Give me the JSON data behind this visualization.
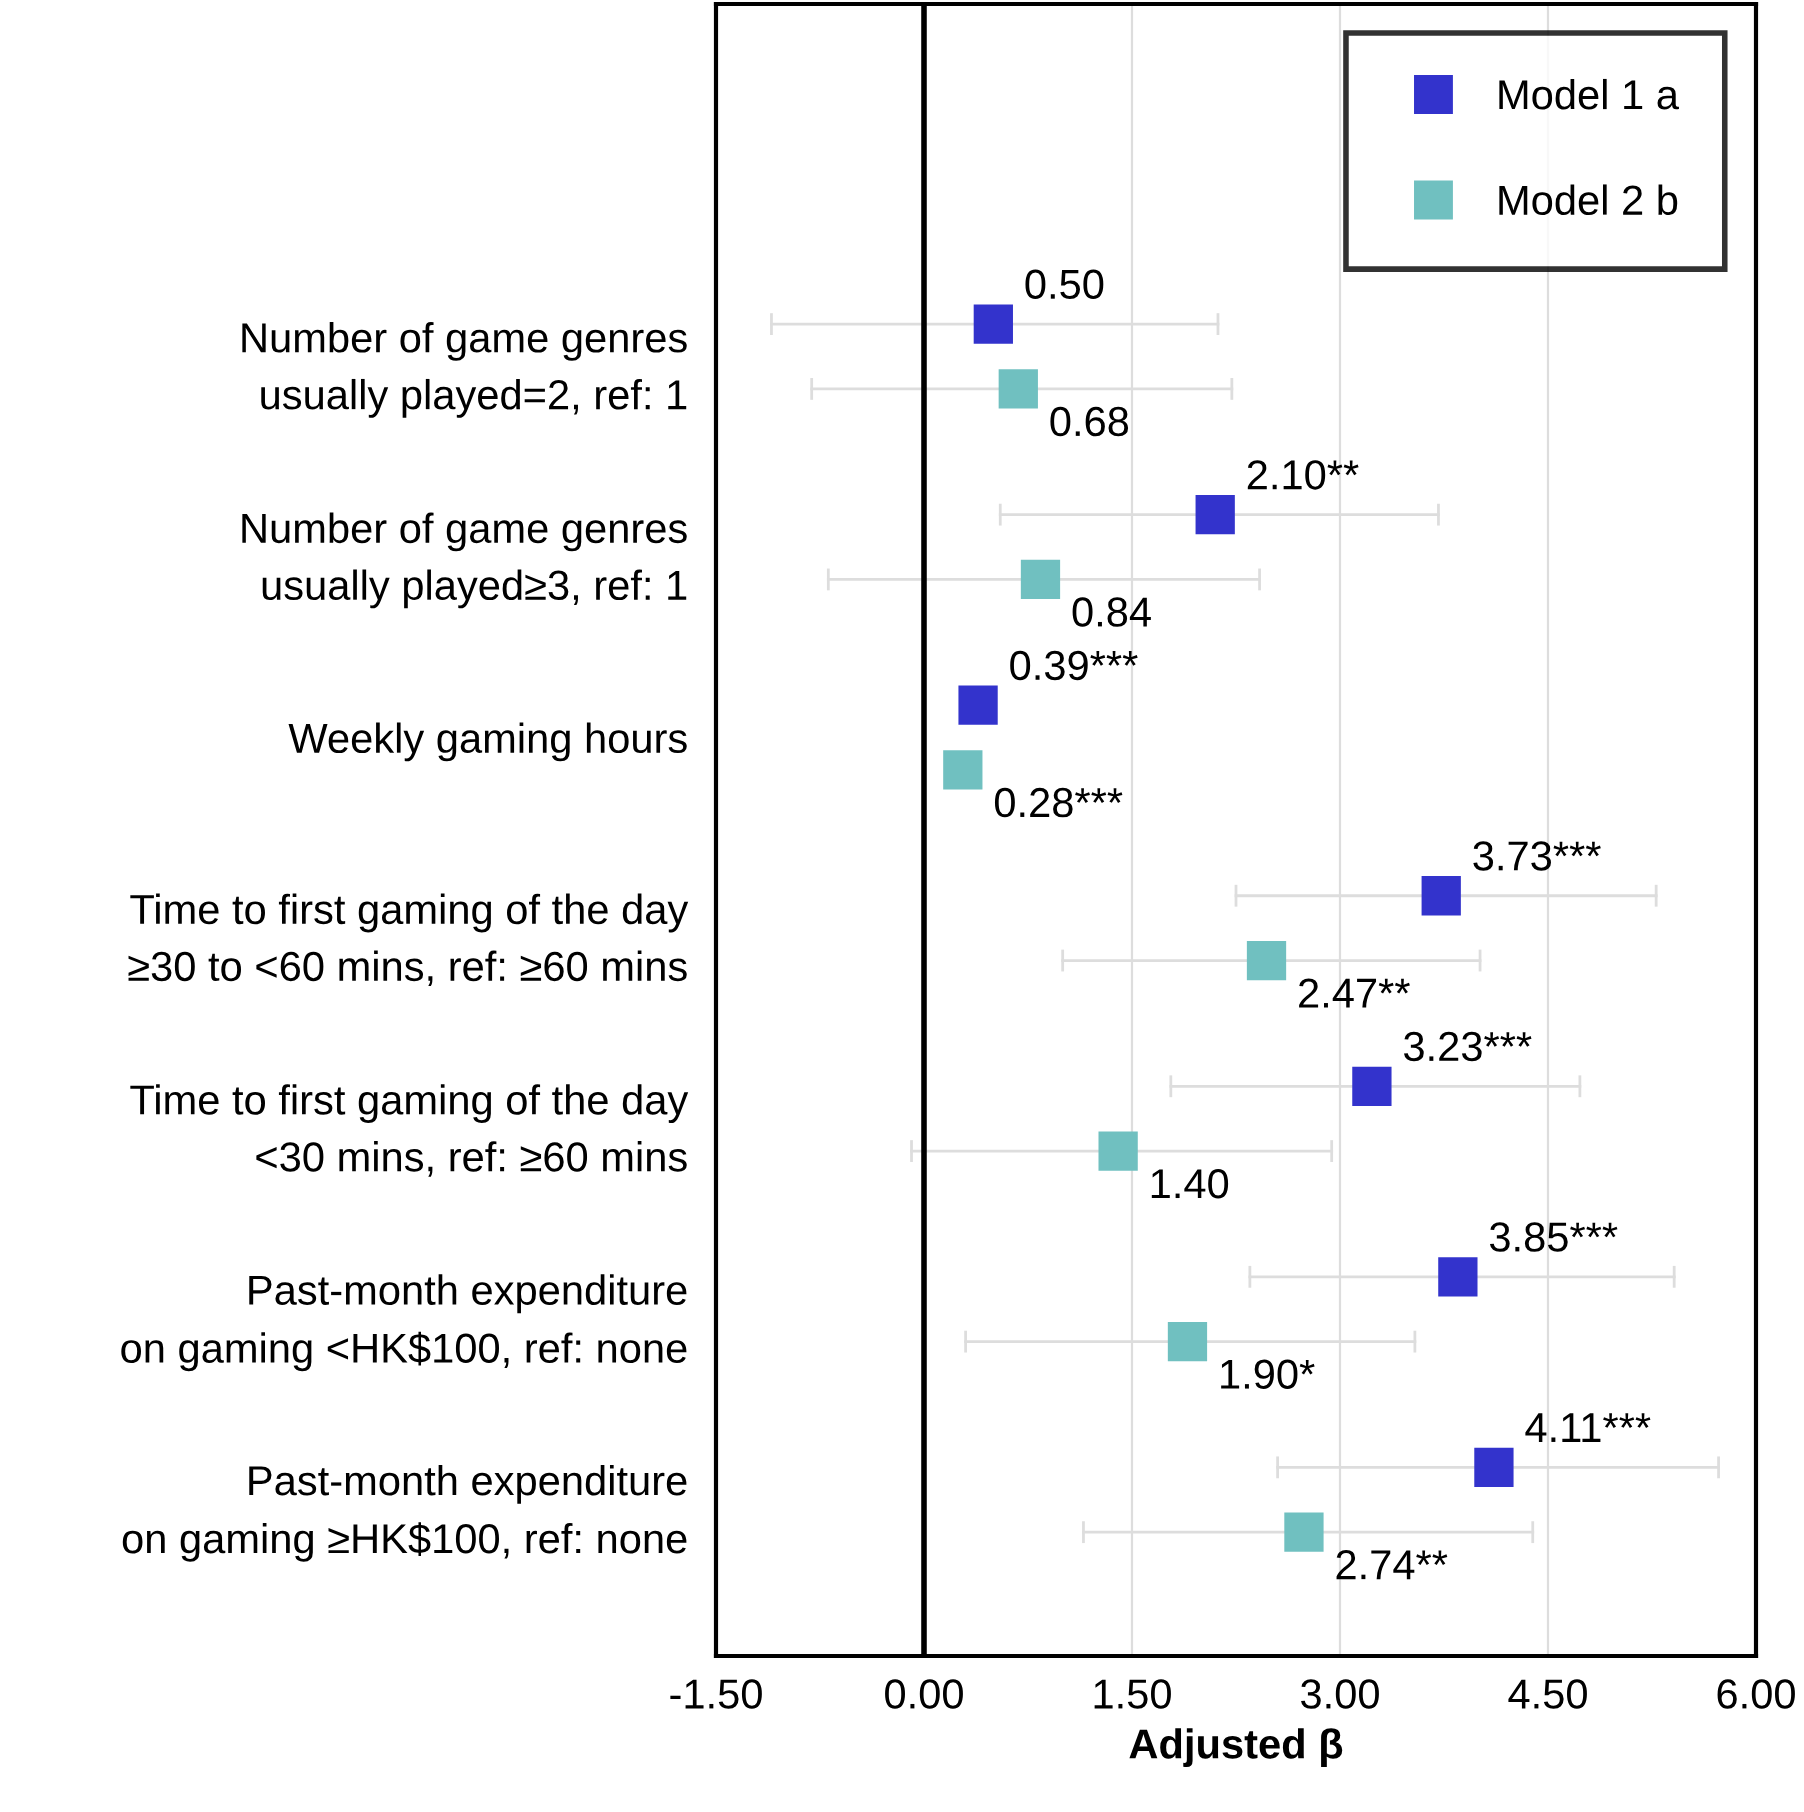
{
  "chart_data": {
    "type": "scatter",
    "orientation": "horizontal",
    "categories": [
      "Number of game genres\nusually played=2, ref: 1",
      "Number of game genres\nusually played≥3, ref: 1",
      "Weekly gaming hours",
      "Time to first gaming of the day\n≥30 to <60 mins, ref: ≥60 mins",
      "Time to first gaming of the day\n<30 mins, ref: ≥60 mins",
      "Past-month expenditure\non gaming <HK$100, ref: none",
      "Past-month expenditure\non gaming ≥HK$100, ref: none"
    ],
    "series": [
      {
        "name": "Model 1 a",
        "color": "#3333cc",
        "values": [
          0.5,
          2.1,
          0.39,
          3.73,
          3.23,
          3.85,
          4.11
        ],
        "errors": [
          [
            -1.1,
            2.12
          ],
          [
            0.55,
            3.71
          ],
          null,
          [
            2.25,
            5.28
          ],
          [
            1.78,
            4.73
          ],
          [
            2.35,
            5.41
          ],
          [
            2.55,
            5.73
          ]
        ],
        "value_labels": [
          "0.50",
          "2.10**",
          "0.39***",
          "3.73***",
          "3.23***",
          "3.85***",
          "4.11***"
        ]
      },
      {
        "name": "Model 2 b",
        "color": "#70c0c0",
        "values": [
          0.68,
          0.84,
          0.28,
          2.47,
          1.4,
          1.9,
          2.74
        ],
        "errors": [
          [
            -0.81,
            2.22
          ],
          [
            -0.69,
            2.42
          ],
          null,
          [
            1.0,
            4.01
          ],
          [
            -0.09,
            2.94
          ],
          [
            0.3,
            3.54
          ],
          [
            1.15,
            4.39
          ]
        ],
        "value_labels": [
          "0.68",
          "0.84",
          "0.28***",
          "2.47**",
          "1.40",
          "1.90*",
          "2.74**"
        ]
      }
    ],
    "xlabel": "Adjusted β",
    "xlim": [
      -1.5,
      6.0
    ],
    "xticks": [
      {
        "value": -1.5,
        "label": "-1.50"
      },
      {
        "value": 0,
        "label": "0.00"
      },
      {
        "value": 1.5,
        "label": "1.50"
      },
      {
        "value": 3.0,
        "label": "3.00"
      },
      {
        "value": 4.5,
        "label": "4.50"
      },
      {
        "value": 6.0,
        "label": "6.00"
      }
    ],
    "ref_lines": [
      {
        "axis": "x",
        "value": 0,
        "color": "#000000"
      }
    ],
    "grid": "x",
    "legend": "top right",
    "marker": "square"
  }
}
